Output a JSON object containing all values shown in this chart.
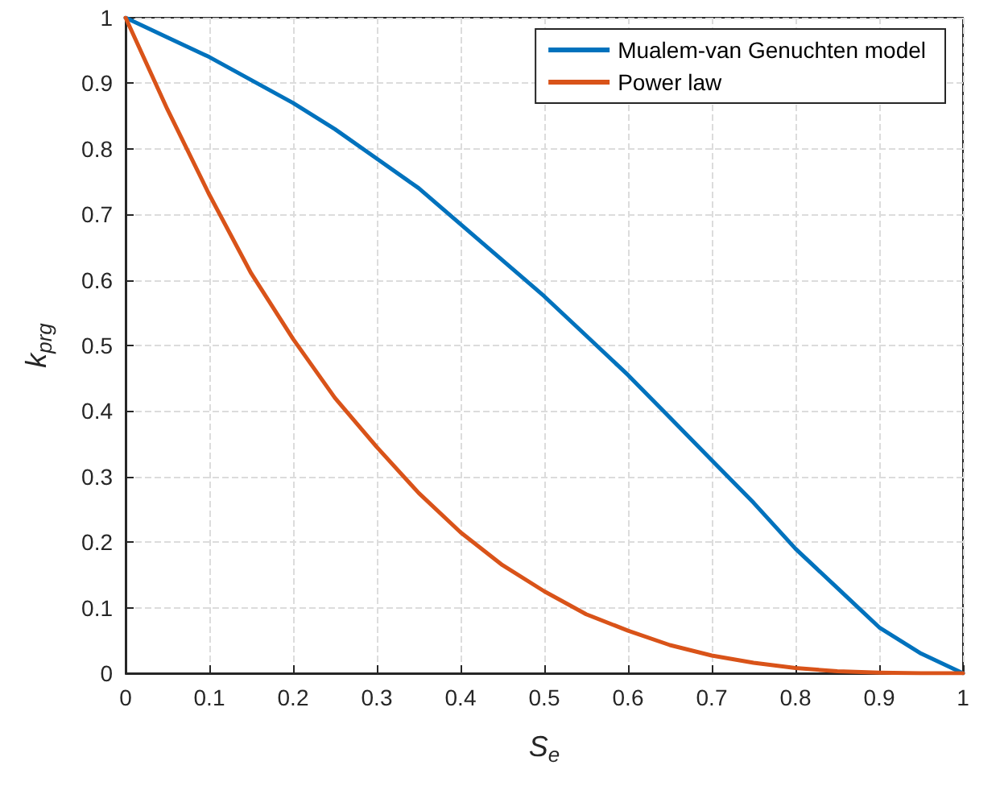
{
  "chart_data": {
    "type": "line",
    "xlabel": "S$_{e}$",
    "ylabel": "k$_{prg}$",
    "x": [
      0,
      0.05,
      0.1,
      0.15,
      0.2,
      0.25,
      0.3,
      0.35,
      0.4,
      0.45,
      0.5,
      0.55,
      0.6,
      0.65,
      0.7,
      0.75,
      0.8,
      0.85,
      0.9,
      0.95,
      1
    ],
    "series": [
      {
        "name": "Mualem-van Genuchten model",
        "color": "#0072bd",
        "values": [
          1,
          0.97,
          0.94,
          0.905,
          0.87,
          0.83,
          0.785,
          0.74,
          0.685,
          0.63,
          0.575,
          0.515,
          0.455,
          0.39,
          0.325,
          0.26,
          0.19,
          0.13,
          0.07,
          0.03,
          0
        ]
      },
      {
        "name": "Power law",
        "color": "#d95319",
        "values": [
          1,
          0.86,
          0.73,
          0.61,
          0.51,
          0.42,
          0.345,
          0.275,
          0.215,
          0.165,
          0.125,
          0.09,
          0.065,
          0.043,
          0.027,
          0.016,
          0.008,
          0.003,
          0.001,
          0,
          0
        ]
      }
    ],
    "xlim": [
      0,
      1
    ],
    "xticks": [
      0,
      0.1,
      0.2,
      0.3,
      0.4,
      0.5,
      0.6,
      0.7,
      0.8,
      0.9,
      1
    ],
    "ylim": [
      0,
      1
    ],
    "yticks": [
      0,
      0.1,
      0.2,
      0.3,
      0.4,
      0.5,
      0.6,
      0.7,
      0.8,
      0.9,
      1
    ],
    "grid": true,
    "legend": "top right",
    "marker": "none",
    "line_style": "solid"
  }
}
